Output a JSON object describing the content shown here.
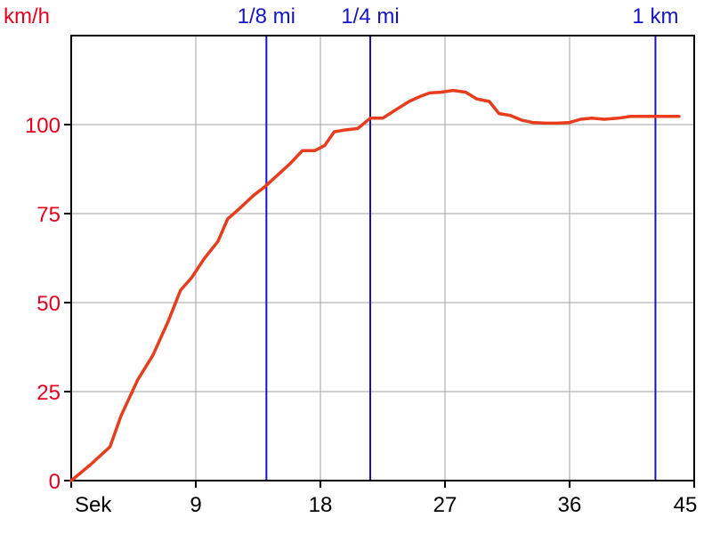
{
  "chart_data": {
    "type": "line",
    "title": "",
    "ylabel": "km/h",
    "xlabel": "Sek",
    "xlim": [
      0,
      45
    ],
    "ylim": [
      0,
      125
    ],
    "grid": true,
    "x_ticks": [
      {
        "value": 0,
        "label": "Sek"
      },
      {
        "value": 9,
        "label": "9"
      },
      {
        "value": 18,
        "label": "18"
      },
      {
        "value": 27,
        "label": "27"
      },
      {
        "value": 36,
        "label": "36"
      },
      {
        "value": 45,
        "label": "45"
      }
    ],
    "y_ticks": [
      {
        "value": 0,
        "label": "0"
      },
      {
        "value": 25,
        "label": "25"
      },
      {
        "value": 50,
        "label": "50"
      },
      {
        "value": 75,
        "label": "75"
      },
      {
        "value": 100,
        "label": "100"
      }
    ],
    "markers": [
      {
        "label": "1/8 mi",
        "x": 14.1
      },
      {
        "label": "1/4 mi",
        "x": 21.6
      },
      {
        "label": "1 km",
        "x": 42.2
      }
    ],
    "series": [
      {
        "color": "#e83c1c",
        "x": [
          0,
          1.4,
          2.8,
          3.6,
          4.8,
          5.9,
          7.0,
          7.9,
          8.7,
          9.6,
          10.6,
          11.3,
          12.1,
          13.2,
          14.0,
          14.9,
          15.8,
          16.7,
          17.6,
          18.3,
          19.0,
          19.8,
          20.7,
          21.6,
          22.5,
          23.5,
          24.4,
          25.2,
          25.9,
          26.7,
          27.6,
          28.5,
          29.3,
          30.2,
          30.9,
          31.7,
          32.5,
          33.3,
          34.3,
          35.1,
          36.0,
          36.8,
          37.6,
          38.5,
          39.5,
          40.4,
          41.1,
          41.9,
          42.4,
          43.2,
          43.9
        ],
        "y": [
          0,
          4.5,
          9.5,
          18.2,
          28.3,
          35.2,
          44.7,
          53.5,
          57.0,
          62.3,
          67.2,
          73.5,
          76.2,
          80.2,
          82.6,
          85.8,
          89.0,
          92.7,
          92.7,
          94.1,
          98.0,
          98.5,
          98.9,
          101.8,
          101.8,
          104.3,
          106.5,
          107.9,
          108.9,
          109.1,
          109.6,
          109.1,
          107.2,
          106.5,
          103.1,
          102.6,
          101.3,
          100.6,
          100.4,
          100.4,
          100.6,
          101.5,
          101.8,
          101.5,
          101.8,
          102.3,
          102.3,
          102.3,
          102.3,
          102.3,
          102.3
        ]
      }
    ]
  }
}
